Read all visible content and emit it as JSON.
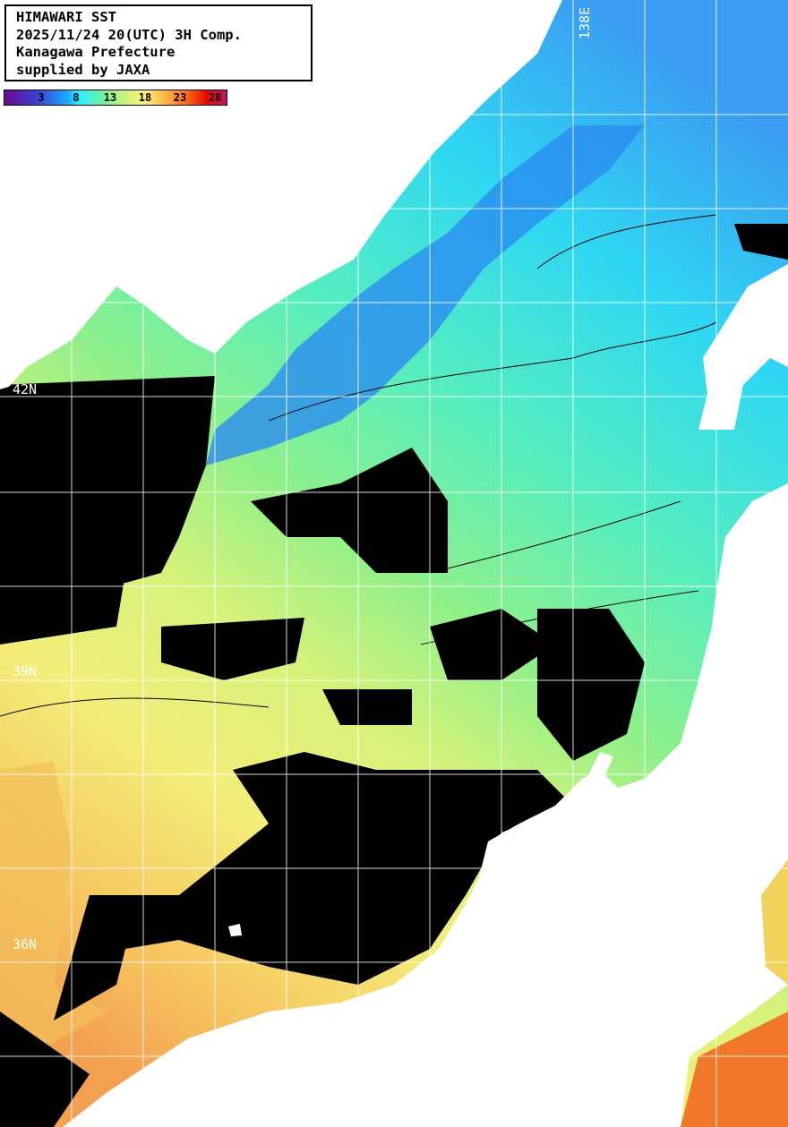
{
  "title_box": {
    "lines": [
      "HIMAWARI SST",
      "2025/11/24 20(UTC) 3H Comp.",
      "Kanagawa Prefecture",
      "supplied by JAXA"
    ]
  },
  "colorbar": {
    "unit_hint": "degC",
    "ticks": [
      "3",
      "8",
      "13",
      "18",
      "23",
      "28"
    ],
    "colors": [
      "#6a0a8f",
      "#3c3cd0",
      "#1aa6ff",
      "#2ef0ff",
      "#6ff0a0",
      "#c8f57a",
      "#fff27a",
      "#ffb040",
      "#ff6a1a",
      "#e60a00",
      "#c0106a"
    ]
  },
  "grid_labels": {
    "lat": [
      "42N",
      "39N",
      "36N"
    ],
    "lon": [
      "138E"
    ]
  },
  "colors": {
    "land": "#ffffff",
    "no_data": "#000000",
    "grid": "#ffffff"
  }
}
